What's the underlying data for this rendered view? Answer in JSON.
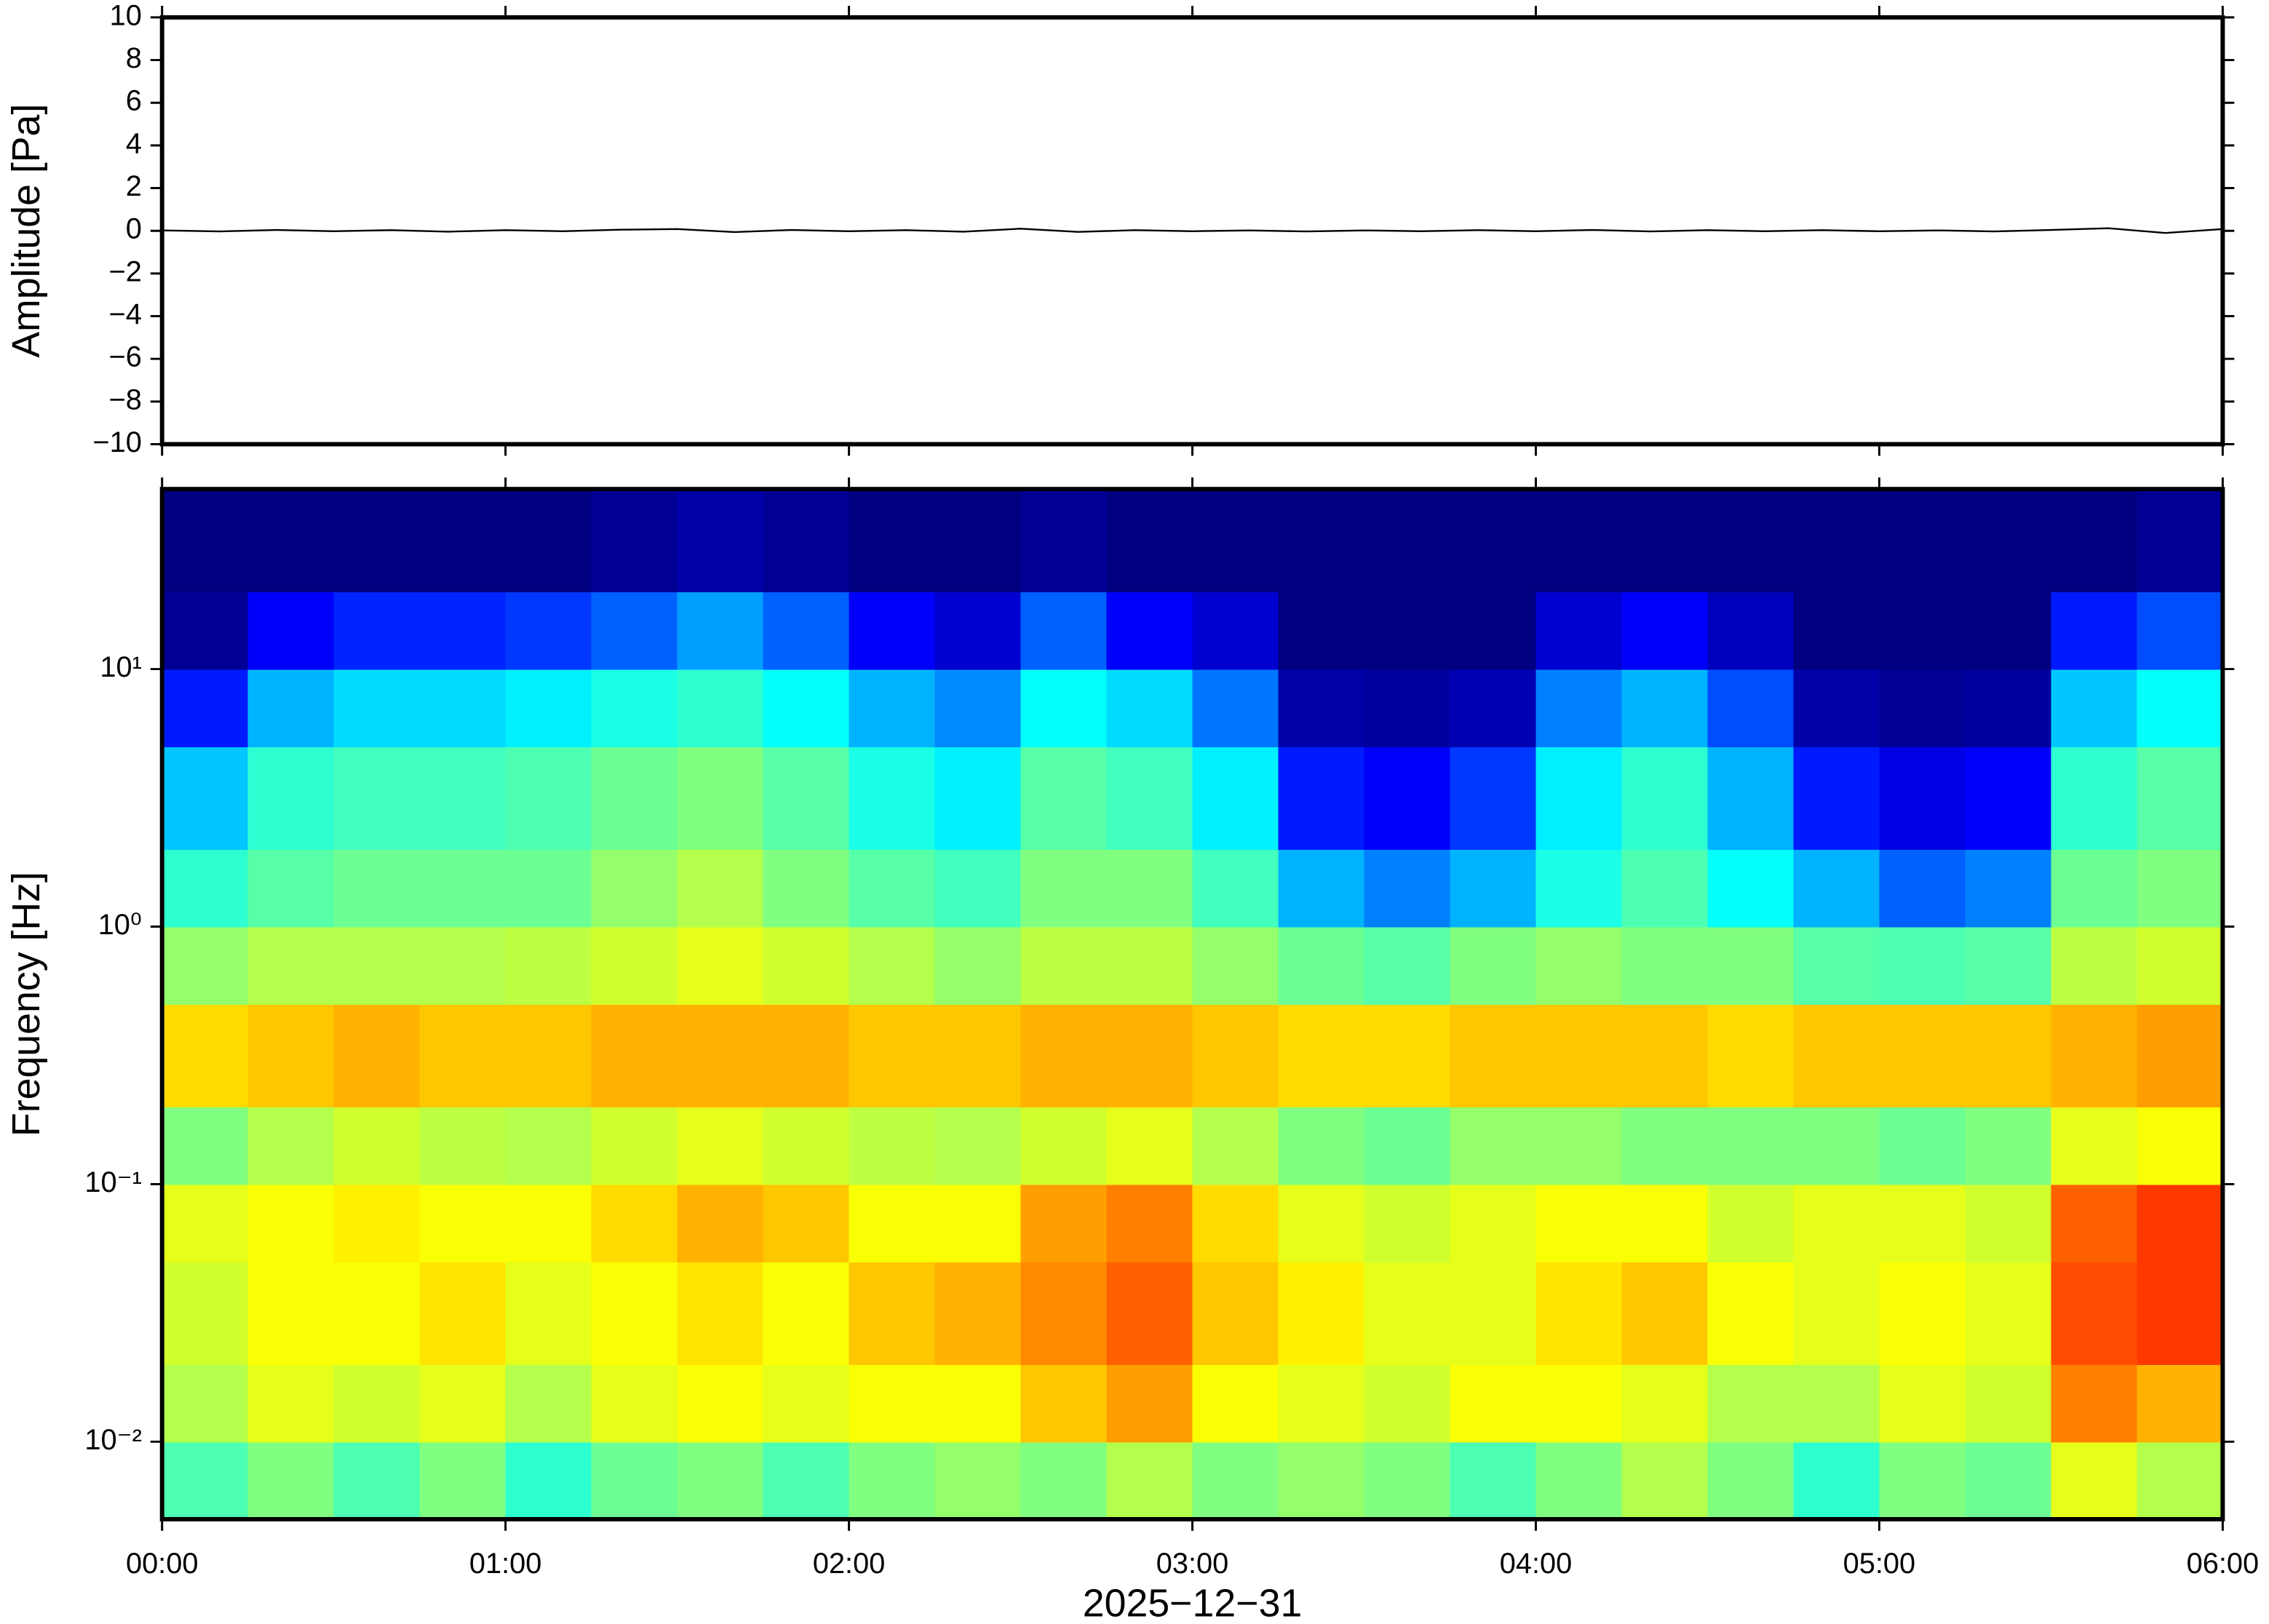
{
  "chart_data": [
    {
      "type": "line",
      "ylabel": "Amplitude [Pa]",
      "color": "#000000",
      "x": [
        0,
        0.1667,
        0.3333,
        0.5,
        0.6667,
        0.8333,
        1,
        1.1667,
        1.3333,
        1.5,
        1.6667,
        1.8333,
        2,
        2.1667,
        2.3333,
        2.5,
        2.6667,
        2.8333,
        3,
        3.1667,
        3.3333,
        3.5,
        3.6667,
        3.8333,
        4,
        4.1667,
        4.3333,
        4.5,
        4.6667,
        4.8333,
        5,
        5.1667,
        5.3333,
        5.5,
        5.6667,
        5.8333,
        6
      ],
      "values": [
        0.02,
        -0.03,
        0.04,
        -0.02,
        0.03,
        -0.04,
        0.03,
        -0.02,
        0.05,
        0.08,
        -0.06,
        0.04,
        -0.02,
        0.03,
        -0.04,
        0.1,
        -0.05,
        0.03,
        -0.02,
        0.02,
        -0.03,
        0.02,
        -0.02,
        0.03,
        -0.02,
        0.04,
        -0.03,
        0.03,
        -0.02,
        0.03,
        -0.02,
        0.02,
        -0.03,
        0.04,
        0.12,
        -0.1,
        0.08
      ],
      "xlim": [
        0,
        6
      ],
      "xticks": [
        0,
        1,
        2,
        3,
        4,
        5,
        6
      ],
      "ylim": [
        -10,
        10
      ],
      "yticks": [
        {
          "value": -10,
          "label": "−10"
        },
        {
          "value": -8,
          "label": "−8"
        },
        {
          "value": -6,
          "label": "−6"
        },
        {
          "value": -4,
          "label": "−4"
        },
        {
          "value": -2,
          "label": "−2"
        },
        0,
        2,
        4,
        6,
        8,
        10
      ]
    },
    {
      "type": "heatmap",
      "ylabel": "Frequency [Hz]",
      "xlabel": "2025−12−31",
      "yscale": "log",
      "colormap": "jet",
      "x_edges": [
        0,
        0.25,
        0.5,
        0.75,
        1,
        1.25,
        1.5,
        1.75,
        2,
        2.25,
        2.5,
        2.75,
        3,
        3.25,
        3.5,
        3.75,
        4,
        4.25,
        4.5,
        4.75,
        5,
        5.25,
        5.5,
        5.75,
        6
      ],
      "y_edges": [
        0.005,
        0.01,
        0.02,
        0.05,
        0.1,
        0.2,
        0.5,
        1,
        2,
        5,
        10,
        20,
        50
      ],
      "z": [
        [
          0.45,
          0.5,
          0.45,
          0.5,
          0.42,
          0.48,
          0.5,
          0.45,
          0.5,
          0.52,
          0.5,
          0.55,
          0.5,
          0.52,
          0.5,
          0.45,
          0.5,
          0.55,
          0.5,
          0.42,
          0.5,
          0.48,
          0.6,
          0.55
        ],
        [
          0.55,
          0.6,
          0.58,
          0.6,
          0.55,
          0.6,
          0.62,
          0.6,
          0.62,
          0.62,
          0.68,
          0.72,
          0.62,
          0.6,
          0.58,
          0.62,
          0.62,
          0.6,
          0.55,
          0.55,
          0.6,
          0.58,
          0.75,
          0.7
        ],
        [
          0.58,
          0.62,
          0.62,
          0.65,
          0.6,
          0.62,
          0.65,
          0.62,
          0.68,
          0.7,
          0.74,
          0.78,
          0.68,
          0.64,
          0.6,
          0.6,
          0.65,
          0.68,
          0.62,
          0.6,
          0.62,
          0.6,
          0.8,
          0.82
        ],
        [
          0.6,
          0.62,
          0.64,
          0.62,
          0.62,
          0.66,
          0.7,
          0.68,
          0.62,
          0.62,
          0.72,
          0.75,
          0.66,
          0.6,
          0.58,
          0.6,
          0.62,
          0.62,
          0.58,
          0.6,
          0.6,
          0.58,
          0.78,
          0.82
        ],
        [
          0.5,
          0.55,
          0.58,
          0.56,
          0.55,
          0.58,
          0.6,
          0.58,
          0.56,
          0.55,
          0.58,
          0.6,
          0.55,
          0.5,
          0.48,
          0.52,
          0.52,
          0.5,
          0.5,
          0.5,
          0.48,
          0.5,
          0.6,
          0.62
        ],
        [
          0.66,
          0.68,
          0.7,
          0.68,
          0.68,
          0.7,
          0.7,
          0.7,
          0.68,
          0.68,
          0.7,
          0.7,
          0.68,
          0.66,
          0.66,
          0.68,
          0.68,
          0.68,
          0.66,
          0.68,
          0.68,
          0.68,
          0.7,
          0.72
        ],
        [
          0.52,
          0.55,
          0.55,
          0.55,
          0.56,
          0.58,
          0.6,
          0.58,
          0.55,
          0.52,
          0.56,
          0.56,
          0.52,
          0.48,
          0.46,
          0.5,
          0.52,
          0.5,
          0.5,
          0.46,
          0.45,
          0.46,
          0.56,
          0.58
        ],
        [
          0.42,
          0.46,
          0.48,
          0.48,
          0.48,
          0.52,
          0.55,
          0.5,
          0.46,
          0.44,
          0.5,
          0.5,
          0.44,
          0.3,
          0.25,
          0.3,
          0.4,
          0.45,
          0.38,
          0.3,
          0.22,
          0.25,
          0.48,
          0.5
        ],
        [
          0.32,
          0.42,
          0.44,
          0.44,
          0.45,
          0.48,
          0.5,
          0.46,
          0.4,
          0.36,
          0.46,
          0.44,
          0.36,
          0.15,
          0.12,
          0.18,
          0.36,
          0.42,
          0.3,
          0.15,
          0.1,
          0.12,
          0.42,
          0.46
        ],
        [
          0.15,
          0.3,
          0.34,
          0.34,
          0.36,
          0.4,
          0.42,
          0.38,
          0.3,
          0.26,
          0.38,
          0.34,
          0.24,
          0.04,
          0.03,
          0.05,
          0.25,
          0.3,
          0.2,
          0.04,
          0.02,
          0.03,
          0.32,
          0.38
        ],
        [
          0.02,
          0.12,
          0.16,
          0.16,
          0.18,
          0.22,
          0.28,
          0.22,
          0.12,
          0.08,
          0.22,
          0.12,
          0.08,
          0,
          0,
          0,
          0.08,
          0.12,
          0.06,
          0,
          0,
          0,
          0.15,
          0.2
        ],
        [
          0,
          0,
          0,
          0,
          0,
          0.02,
          0.04,
          0.02,
          0,
          0,
          0.02,
          0,
          0,
          0,
          0,
          0,
          0,
          0,
          0,
          0,
          0,
          0,
          0,
          0.02
        ]
      ],
      "xlim": [
        0,
        6
      ],
      "xticks": [
        {
          "value": 0,
          "label": "00:00"
        },
        {
          "value": 1,
          "label": "01:00"
        },
        {
          "value": 2,
          "label": "02:00"
        },
        {
          "value": 3,
          "label": "03:00"
        },
        {
          "value": 4,
          "label": "04:00"
        },
        {
          "value": 5,
          "label": "05:00"
        },
        {
          "value": 6,
          "label": "06:00"
        }
      ],
      "ylim": [
        0.005,
        50
      ],
      "yticks": [
        {
          "value": 0.01,
          "label": "10⁻²"
        },
        {
          "value": 0.1,
          "label": "10⁻¹"
        },
        {
          "value": 1,
          "label": "10⁰"
        },
        {
          "value": 10,
          "label": "10¹"
        }
      ]
    }
  ]
}
